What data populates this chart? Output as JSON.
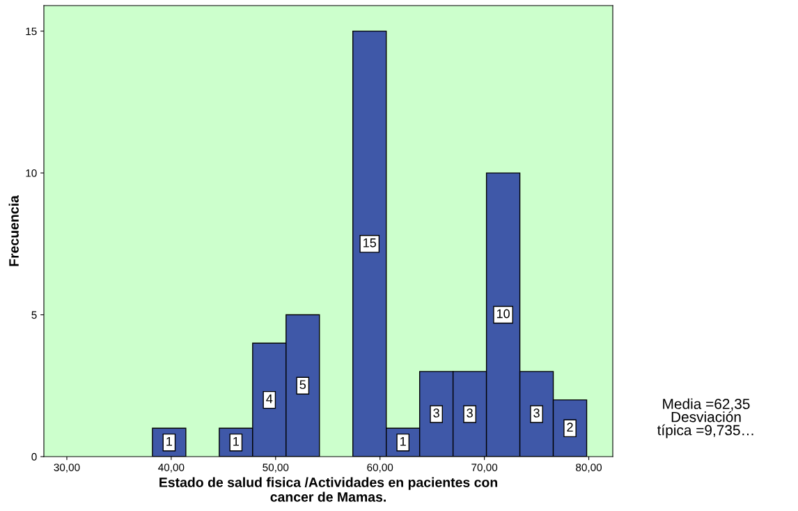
{
  "chart_data": {
    "type": "histogram",
    "xlabel": "Estado de salud fisica /Actividades en pacientes con\ncancer de Mamas.",
    "ylabel": "Frecuencia",
    "bins": [
      38.2,
      41.4,
      44.6,
      47.8,
      51.0,
      54.2,
      57.4,
      60.6,
      63.8,
      67.0,
      70.2,
      73.4,
      76.6,
      79.8
    ],
    "values": [
      1,
      0,
      1,
      4,
      5,
      0,
      15,
      1,
      3,
      3,
      10,
      3,
      2
    ],
    "value_labels": [
      "1",
      null,
      "1",
      "4",
      "5",
      null,
      "15",
      "1",
      "3",
      "3",
      "10",
      "3",
      "2"
    ],
    "color": "#3f58a8",
    "xlim": [
      27.8,
      82.3
    ],
    "xticks": [
      {
        "value": 30,
        "label": "30,00"
      },
      {
        "value": 40,
        "label": "40,00"
      },
      {
        "value": 50,
        "label": "50,00"
      },
      {
        "value": 60,
        "label": "60,00"
      },
      {
        "value": 70,
        "label": "70,00"
      },
      {
        "value": 80,
        "label": "80,00"
      }
    ],
    "ylim": [
      0,
      15.9
    ],
    "yticks": [
      0,
      5,
      10,
      15
    ],
    "grid": false,
    "annotations": [
      "Media =62,35\nDesviación\ntípica =9,735…"
    ]
  }
}
